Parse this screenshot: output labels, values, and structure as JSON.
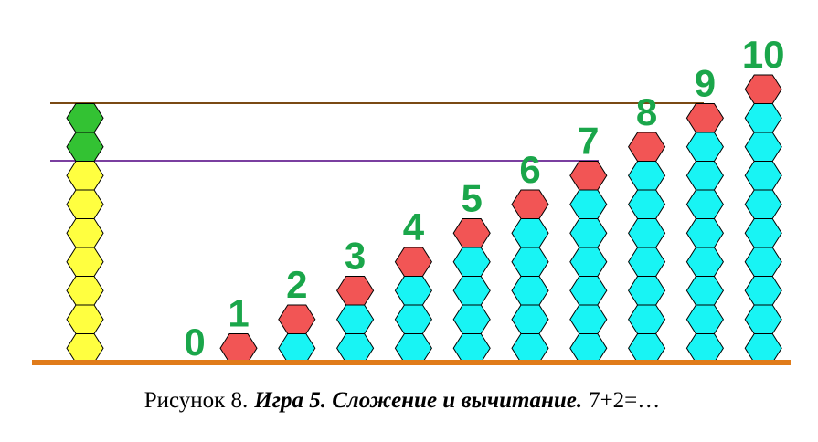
{
  "column_labels": [
    "0",
    "1",
    "2",
    "3",
    "4",
    "5",
    "6",
    "7",
    "8",
    "9",
    "10"
  ],
  "caption": {
    "prefix": "Рисунок 8.",
    "title": "Игра 5. Сложение и вычитание.",
    "expression": "7+2=…"
  }
}
